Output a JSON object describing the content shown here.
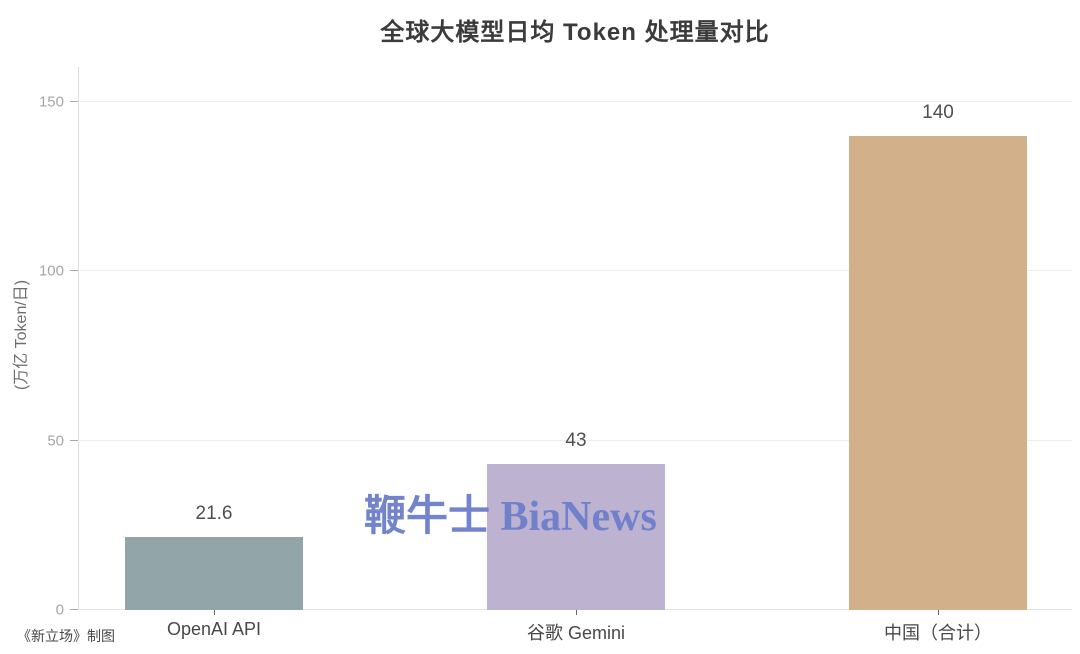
{
  "chart_data": {
    "type": "bar",
    "title": "全球大模型日均 Token 处理量对比",
    "categories": [
      "OpenAI API",
      "谷歌 Gemini",
      "中国（合计）"
    ],
    "values": [
      21.6,
      43,
      140
    ],
    "value_labels": [
      "21.6",
      "43",
      "140"
    ],
    "bar_colors": [
      "#92a6a9",
      "#bdb2d0",
      "#d2b089"
    ],
    "xlabel": "",
    "ylabel": "(万亿 Token/日)",
    "ylim": [
      0,
      150
    ],
    "yticks": [
      0,
      50,
      100,
      150
    ],
    "grid": true,
    "legend": false
  },
  "watermark": {
    "text": "鞭牛士 BiaNews",
    "color": "#6c7ecb"
  },
  "credit": {
    "text": "《新立场》制图"
  }
}
